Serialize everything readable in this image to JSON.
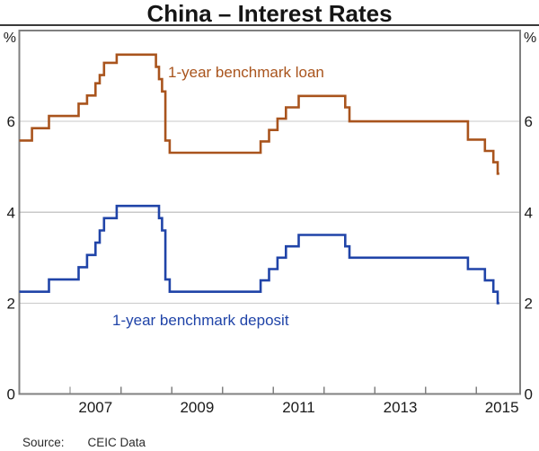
{
  "chart_data": {
    "type": "line",
    "step": true,
    "title": "China – Interest Rates",
    "y_unit": "%",
    "ylim": [
      0,
      8
    ],
    "yticks": [
      0,
      2,
      4,
      6
    ],
    "gridlines": [
      2,
      4,
      6
    ],
    "xlim": [
      2006.0,
      2015.86
    ],
    "xticks": [
      2007,
      2008,
      2009,
      2010,
      2011,
      2012,
      2013,
      2014,
      2015
    ],
    "xtick_labels": [
      "2007",
      "2009",
      "2011",
      "2013",
      "2015"
    ],
    "legend_position": "inline-annotations",
    "grid": true,
    "colors": {
      "frame": "#808080",
      "gridline": "#c9c9c9",
      "tick": "#808080"
    },
    "series": [
      {
        "name": "1-year benchmark loan",
        "color": "#a9541d",
        "end_t": 2015.45,
        "points": [
          [
            2006.0,
            5.58
          ],
          [
            2006.25,
            5.85
          ],
          [
            2006.583,
            6.12
          ],
          [
            2007.167,
            6.39
          ],
          [
            2007.333,
            6.57
          ],
          [
            2007.5,
            6.84
          ],
          [
            2007.583,
            7.02
          ],
          [
            2007.667,
            7.29
          ],
          [
            2007.917,
            7.47
          ],
          [
            2008.69,
            7.2
          ],
          [
            2008.75,
            6.93
          ],
          [
            2008.81,
            6.66
          ],
          [
            2008.875,
            5.58
          ],
          [
            2008.96,
            5.31
          ],
          [
            2010.75,
            5.56
          ],
          [
            2010.917,
            5.81
          ],
          [
            2011.083,
            6.06
          ],
          [
            2011.25,
            6.31
          ],
          [
            2011.5,
            6.56
          ],
          [
            2012.417,
            6.31
          ],
          [
            2012.5,
            6.0
          ],
          [
            2014.833,
            5.6
          ],
          [
            2015.167,
            5.35
          ],
          [
            2015.333,
            5.1
          ],
          [
            2015.417,
            4.85
          ]
        ]
      },
      {
        "name": "1-year benchmark deposit",
        "color": "#2044a8",
        "end_t": 2015.45,
        "points": [
          [
            2006.0,
            2.25
          ],
          [
            2006.583,
            2.52
          ],
          [
            2007.167,
            2.79
          ],
          [
            2007.333,
            3.06
          ],
          [
            2007.5,
            3.33
          ],
          [
            2007.583,
            3.6
          ],
          [
            2007.667,
            3.87
          ],
          [
            2007.917,
            4.14
          ],
          [
            2008.75,
            3.87
          ],
          [
            2008.81,
            3.6
          ],
          [
            2008.875,
            2.52
          ],
          [
            2008.96,
            2.25
          ],
          [
            2010.75,
            2.5
          ],
          [
            2010.917,
            2.75
          ],
          [
            2011.083,
            3.0
          ],
          [
            2011.25,
            3.25
          ],
          [
            2011.5,
            3.5
          ],
          [
            2012.417,
            3.25
          ],
          [
            2012.5,
            3.0
          ],
          [
            2014.833,
            2.75
          ],
          [
            2015.167,
            2.5
          ],
          [
            2015.333,
            2.25
          ],
          [
            2015.417,
            2.0
          ]
        ]
      }
    ],
    "source": {
      "label": "Source:",
      "text": "CEIC Data"
    }
  }
}
